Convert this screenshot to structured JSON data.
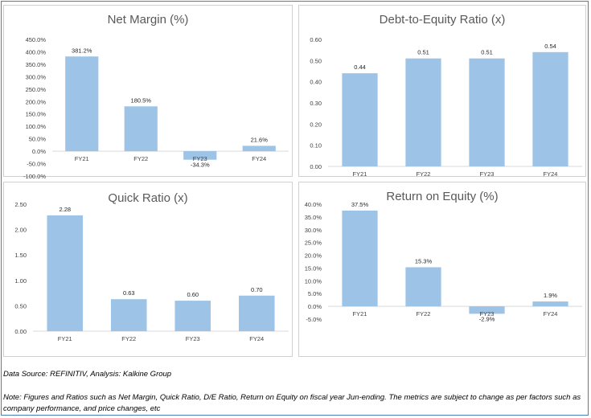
{
  "source_text": "Data Source: REFINITIV, Analysis: Kalkine Group",
  "note_text": "Note: Figures and Ratios such as Net Margin, Quick Ratio, D/E Ratio, Return on Equity on fiscal year Jun-ending. The metrics are subject to change as per factors such as company performance, and price changes, etc",
  "bar_color": "#9dc3e6",
  "chart_data": [
    {
      "type": "bar",
      "title": "Net Margin (%)",
      "categories": [
        "FY21",
        "FY22",
        "FY23",
        "FY24"
      ],
      "values": [
        381.2,
        180.5,
        -34.3,
        21.6
      ],
      "value_labels": [
        "381.2%",
        "180.5%",
        "-34.3%",
        "21.6%"
      ],
      "ylim": [
        -100,
        450
      ],
      "yticks": [
        -100,
        -50,
        0,
        50,
        100,
        150,
        200,
        250,
        300,
        350,
        400,
        450
      ],
      "ytick_labels": [
        "-100.0%",
        "-50.0%",
        "0.0%",
        "50.0%",
        "100.0%",
        "150.0%",
        "200.0%",
        "250.0%",
        "300.0%",
        "350.0%",
        "400.0%",
        "450.0%"
      ],
      "grid": false,
      "legend": "none"
    },
    {
      "type": "bar",
      "title": "Debt-to-Equity Ratio (x)",
      "categories": [
        "FY21",
        "FY22",
        "FY23",
        "FY24"
      ],
      "values": [
        0.44,
        0.51,
        0.51,
        0.54
      ],
      "value_labels": [
        "0.44",
        "0.51",
        "0.51",
        "0.54"
      ],
      "ylim": [
        0,
        0.6
      ],
      "yticks": [
        0,
        0.1,
        0.2,
        0.3,
        0.4,
        0.5,
        0.6
      ],
      "ytick_labels": [
        "0.00",
        "0.10",
        "0.20",
        "0.30",
        "0.40",
        "0.50",
        "0.60"
      ],
      "grid": false,
      "legend": "none"
    },
    {
      "type": "bar",
      "title": "Quick Ratio (x)",
      "categories": [
        "FY21",
        "FY22",
        "FY23",
        "FY24"
      ],
      "values": [
        2.28,
        0.63,
        0.6,
        0.7
      ],
      "value_labels": [
        "2.28",
        "0.63",
        "0.60",
        "0.70"
      ],
      "ylim": [
        0,
        2.5
      ],
      "yticks": [
        0,
        0.5,
        1.0,
        1.5,
        2.0,
        2.5
      ],
      "ytick_labels": [
        "0.00",
        "0.50",
        "1.00",
        "1.50",
        "2.00",
        "2.50"
      ],
      "grid": false,
      "legend": "none"
    },
    {
      "type": "bar",
      "title": "Return on Equity (%)",
      "categories": [
        "FY21",
        "FY22",
        "FY23",
        "FY24"
      ],
      "values": [
        37.5,
        15.3,
        -2.9,
        1.9
      ],
      "value_labels": [
        "37.5%",
        "15.3%",
        "-2.9%",
        "1.9%"
      ],
      "ylim": [
        -5,
        40
      ],
      "yticks": [
        -5,
        0,
        5,
        10,
        15,
        20,
        25,
        30,
        35,
        40
      ],
      "ytick_labels": [
        "-5.0%",
        "0.0%",
        "5.0%",
        "10.0%",
        "15.0%",
        "20.0%",
        "25.0%",
        "30.0%",
        "35.0%",
        "40.0%"
      ],
      "grid": false,
      "legend": "none"
    }
  ]
}
